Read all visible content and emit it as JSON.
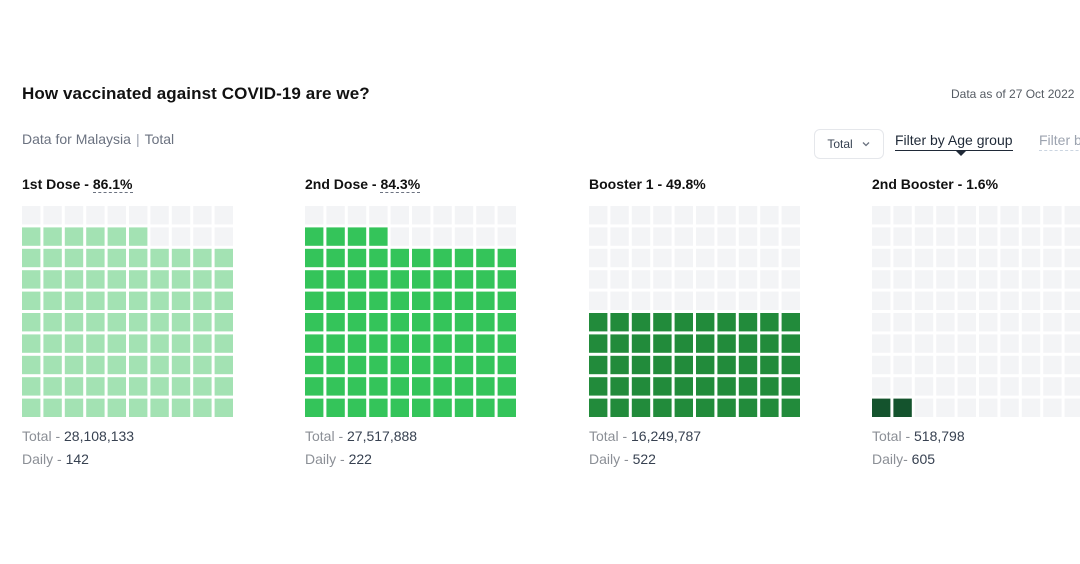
{
  "header": {
    "title": "How vaccinated against COVID-19 are we?",
    "data_as_of": "Data as of 27 Oct 2022",
    "subtitle_region": "Data for Malaysia",
    "subtitle_sep": "|",
    "subtitle_scope": "Total"
  },
  "controls": {
    "dropdown_value": "Total",
    "filter_age": "Filter by Age group",
    "filter_other": "Filter by"
  },
  "chart_data": {
    "type": "waffle",
    "grid": {
      "rows": 10,
      "cols": 10
    },
    "empty_color": "#f3f4f6",
    "panels": [
      {
        "title_prefix": "1st Dose - ",
        "percent_label": "86.1%",
        "percent": 86.1,
        "filled_cells": 86,
        "color": "#a3e2b3",
        "dashed_percent": true,
        "total_label": "Total - ",
        "total": "28,108,133",
        "daily_label": "Daily - ",
        "daily": "142"
      },
      {
        "title_prefix": "2nd Dose - ",
        "percent_label": "84.3%",
        "percent": 84.3,
        "filled_cells": 84,
        "color": "#34c45a",
        "dashed_percent": true,
        "total_label": "Total - ",
        "total": "27,517,888",
        "daily_label": "Daily - ",
        "daily": "222"
      },
      {
        "title_prefix": "Booster 1 - ",
        "percent_label": "49.8%",
        "percent": 49.8,
        "filled_cells": 50,
        "color": "#228b3b",
        "dashed_percent": false,
        "total_label": "Total - ",
        "total": "16,249,787",
        "daily_label": "Daily - ",
        "daily": "522"
      },
      {
        "title_prefix": "2nd Booster - ",
        "percent_label": "1.6%",
        "percent": 1.6,
        "filled_cells": 2,
        "color": "#14532d",
        "dashed_percent": false,
        "total_label": "Total - ",
        "total": "518,798",
        "daily_label": "Daily- ",
        "daily": "605"
      }
    ]
  }
}
